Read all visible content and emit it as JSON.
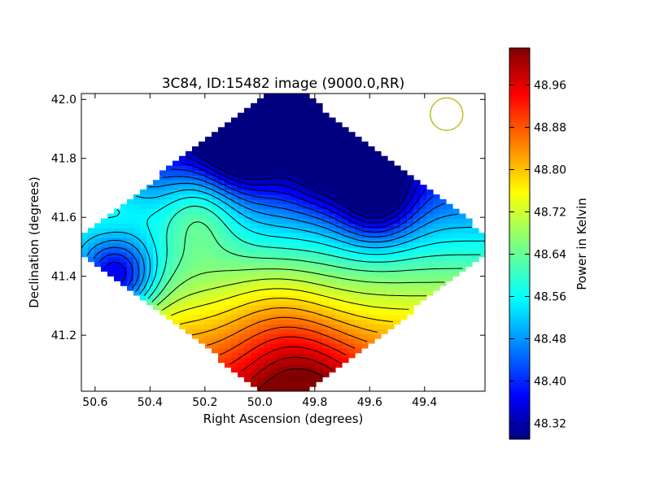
{
  "chart_data": {
    "type": "heatmap",
    "title": "3C84, ID:15482 image (9000.0,RR)",
    "xlabel": "Right Ascension (degrees)",
    "ylabel": "Declination (degrees)",
    "xlim": [
      50.65,
      49.18
    ],
    "ylim": [
      41.01,
      42.02
    ],
    "x_ticks": [
      50.6,
      50.4,
      50.2,
      50.0,
      49.8,
      49.6,
      49.4
    ],
    "x_tick_labels": [
      "50.6",
      "50.4",
      "50.2",
      "50.0",
      "49.8",
      "49.6",
      "49.4"
    ],
    "y_ticks": [
      41.2,
      41.4,
      41.6,
      41.8,
      42.0
    ],
    "y_tick_labels": [
      "41.2",
      "41.4",
      "41.6",
      "41.8",
      "42.0"
    ],
    "colorbar": {
      "label": "Power in Kelvin",
      "range": [
        48.29,
        49.03
      ],
      "ticks": [
        48.32,
        48.4,
        48.48,
        48.56,
        48.64,
        48.72,
        48.8,
        48.88,
        48.96
      ],
      "tick_labels": [
        "48.32",
        "48.40",
        "48.48",
        "48.56",
        "48.64",
        "48.72",
        "48.80",
        "48.88",
        "48.96"
      ],
      "colormap": "jet"
    },
    "field_shape": "diamond",
    "field_center": [
      49.91,
      41.51
    ],
    "features": [
      {
        "kind": "minimum",
        "ra": 50.06,
        "dec": 41.86,
        "value": 48.3
      },
      {
        "kind": "minimum",
        "ra": 49.58,
        "dec": 41.67,
        "value": 48.3
      },
      {
        "kind": "minimum",
        "ra": 50.53,
        "dec": 41.39,
        "value": 48.4
      },
      {
        "kind": "maximum",
        "ra": 50.22,
        "dec": 41.63,
        "value": 48.76
      },
      {
        "kind": "maximum",
        "ra": 49.85,
        "dec": 41.04,
        "value": 49.02
      }
    ],
    "beam": {
      "ra": 49.32,
      "dec": 41.95,
      "color": "#bfbf1f"
    }
  }
}
